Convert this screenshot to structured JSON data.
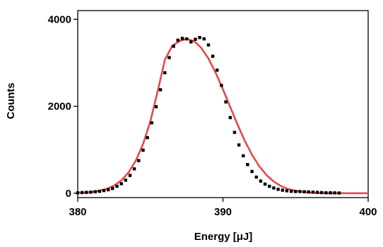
{
  "chart_data": {
    "type": "scatter",
    "title": "",
    "xlabel": "Energy [μJ]",
    "ylabel": "Counts",
    "xlim": [
      380,
      400
    ],
    "ylim": [
      -100,
      4200
    ],
    "xticks": [
      380,
      390,
      400
    ],
    "yticks": [
      0,
      2000,
      4000
    ],
    "grid": false,
    "legend": "none",
    "series": [
      {
        "kind": "points",
        "marker": "square",
        "color": "#000000",
        "x": [
          380.0,
          380.3,
          380.6,
          380.9,
          381.2,
          381.5,
          381.8,
          382.1,
          382.4,
          382.7,
          383.0,
          383.3,
          383.6,
          383.9,
          384.2,
          384.5,
          384.8,
          385.1,
          385.4,
          385.7,
          386.0,
          386.3,
          386.6,
          386.9,
          387.2,
          387.5,
          387.8,
          388.1,
          388.4,
          388.7,
          389.0,
          389.3,
          389.6,
          389.9,
          390.2,
          390.5,
          390.8,
          391.1,
          391.4,
          391.7,
          392.0,
          392.3,
          392.6,
          392.9,
          393.2,
          393.5,
          393.8,
          394.1,
          394.4,
          394.7,
          395.0,
          395.3,
          395.6,
          395.9,
          396.2,
          396.5,
          396.8,
          397.1,
          397.4,
          397.7,
          398.0
        ],
        "y": [
          10,
          15,
          20,
          25,
          35,
          45,
          60,
          80,
          110,
          160,
          220,
          300,
          410,
          560,
          750,
          990,
          1280,
          1620,
          1990,
          2380,
          2770,
          3120,
          3380,
          3520,
          3560,
          3550,
          3480,
          3540,
          3580,
          3550,
          3410,
          3150,
          2830,
          2480,
          2100,
          1740,
          1400,
          1110,
          860,
          660,
          500,
          370,
          280,
          210,
          160,
          120,
          90,
          70,
          55,
          45,
          40,
          40,
          35,
          30,
          25,
          20,
          15,
          10,
          10,
          8,
          5
        ]
      },
      {
        "kind": "fit",
        "color": "#e8474a",
        "x": [
          380.0,
          380.5,
          381.0,
          381.5,
          382.0,
          382.5,
          383.0,
          383.5,
          384.0,
          384.5,
          385.0,
          385.5,
          386.0,
          386.5,
          387.0,
          387.5,
          388.0,
          388.5,
          389.0,
          389.5,
          390.0,
          390.5,
          391.0,
          391.5,
          392.0,
          392.5,
          393.0,
          393.5,
          394.0,
          394.5,
          395.0,
          395.5,
          396.0,
          396.5,
          397.0,
          397.5,
          398.0,
          398.5,
          399.0,
          399.5,
          400.0
        ],
        "y": [
          8,
          16,
          31,
          57,
          102,
          176,
          295,
          478,
          749,
          1133,
          1656,
          2335,
          3066,
          3386,
          3498,
          3550,
          3500,
          3345,
          3096,
          2770,
          2390,
          1984,
          1582,
          1209,
          886,
          621,
          417,
          268,
          165,
          97,
          55,
          30,
          15,
          7,
          3,
          1,
          0,
          0,
          0,
          0,
          0
        ]
      }
    ]
  }
}
